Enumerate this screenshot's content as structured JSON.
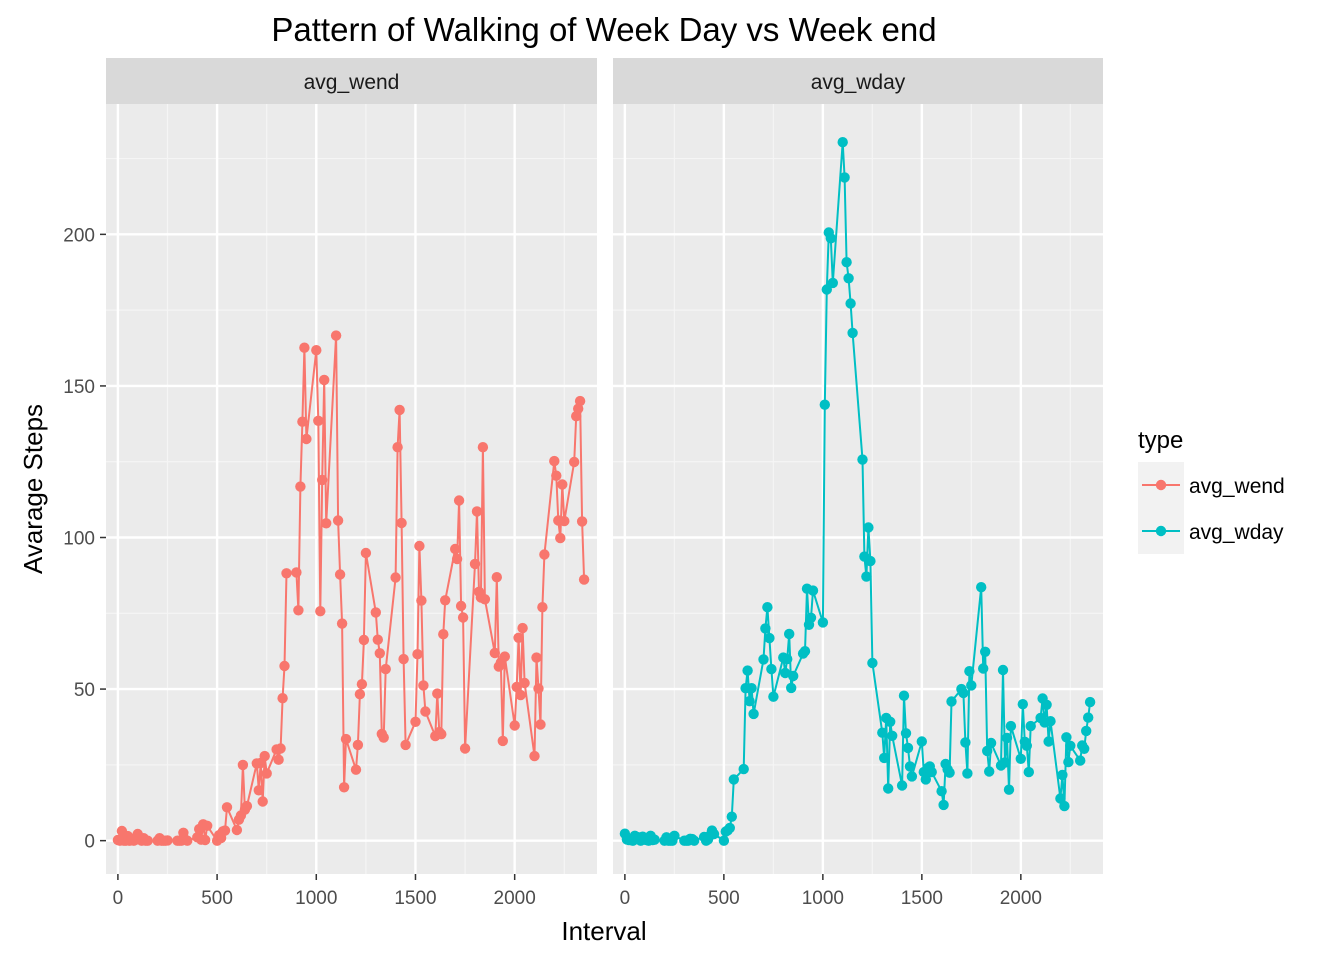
{
  "chart_data": {
    "type": "line",
    "title": "Pattern of Walking of Week Day vs Week end",
    "xlabel": "Interval",
    "ylabel": "Avarage Steps",
    "xlim": [
      -60,
      2415
    ],
    "ylim": [
      -11,
      243
    ],
    "x_ticks": [
      0,
      500,
      1000,
      1500,
      2000
    ],
    "y_ticks": [
      0,
      50,
      100,
      150,
      200
    ],
    "grid": true,
    "legend": {
      "title": "type",
      "placement": "right",
      "entries": [
        "avg_wend",
        "avg_wday"
      ]
    },
    "colors": {
      "avg_wend": "#F8766D",
      "avg_wday": "#00BFC4"
    },
    "facets": [
      {
        "label": "avg_wend",
        "series": "avg_wend",
        "points": [
          [
            0,
            0.2
          ],
          [
            10,
            0
          ],
          [
            20,
            3.2
          ],
          [
            30,
            0
          ],
          [
            40,
            0
          ],
          [
            50,
            1.5
          ],
          [
            60,
            0
          ],
          [
            70,
            0.6
          ],
          [
            80,
            0
          ],
          [
            90,
            0.3
          ],
          [
            100,
            2.2
          ],
          [
            110,
            0.6
          ],
          [
            120,
            0
          ],
          [
            130,
            0.8
          ],
          [
            140,
            0
          ],
          [
            150,
            0
          ],
          [
            200,
            0
          ],
          [
            210,
            0.8
          ],
          [
            220,
            0
          ],
          [
            230,
            0
          ],
          [
            240,
            0
          ],
          [
            250,
            0.1
          ],
          [
            300,
            0
          ],
          [
            310,
            0
          ],
          [
            320,
            0
          ],
          [
            330,
            2.6
          ],
          [
            340,
            0.3
          ],
          [
            350,
            0
          ],
          [
            400,
            1.1
          ],
          [
            410,
            3.8
          ],
          [
            420,
            0.3
          ],
          [
            430,
            5.4
          ],
          [
            440,
            0.2
          ],
          [
            450,
            4.9
          ],
          [
            500,
            0
          ],
          [
            510,
            1.8
          ],
          [
            520,
            0.9
          ],
          [
            530,
            3.1
          ],
          [
            540,
            3.3
          ],
          [
            550,
            11
          ],
          [
            600,
            3.5
          ],
          [
            610,
            6.9
          ],
          [
            620,
            8.3
          ],
          [
            630,
            25
          ],
          [
            640,
            10.2
          ],
          [
            650,
            11.4
          ],
          [
            700,
            25.5
          ],
          [
            710,
            16.6
          ],
          [
            720,
            25.6
          ],
          [
            730,
            12.9
          ],
          [
            740,
            27.9
          ],
          [
            750,
            22.2
          ],
          [
            800,
            30.1
          ],
          [
            810,
            26.7
          ],
          [
            820,
            30.4
          ],
          [
            830,
            47
          ],
          [
            840,
            57.6
          ],
          [
            850,
            88.2
          ],
          [
            900,
            88.5
          ],
          [
            910,
            76
          ],
          [
            920,
            116.8
          ],
          [
            930,
            138.2
          ],
          [
            940,
            162.6
          ],
          [
            950,
            132.5
          ],
          [
            1000,
            161.8
          ],
          [
            1010,
            138.5
          ],
          [
            1020,
            75.7
          ],
          [
            1030,
            119
          ],
          [
            1040,
            152
          ],
          [
            1050,
            104.7
          ],
          [
            1100,
            166.6
          ],
          [
            1110,
            105.6
          ],
          [
            1120,
            87.8
          ],
          [
            1130,
            71.6
          ],
          [
            1140,
            17.6
          ],
          [
            1150,
            33.5
          ],
          [
            1200,
            23.4
          ],
          [
            1210,
            31.6
          ],
          [
            1220,
            48.3
          ],
          [
            1230,
            51.6
          ],
          [
            1240,
            66.2
          ],
          [
            1250,
            94.9
          ],
          [
            1300,
            75.3
          ],
          [
            1310,
            66.3
          ],
          [
            1320,
            61.8
          ],
          [
            1330,
            35.2
          ],
          [
            1340,
            34
          ],
          [
            1350,
            56.6
          ],
          [
            1400,
            86.8
          ],
          [
            1410,
            129.8
          ],
          [
            1420,
            142.1
          ],
          [
            1430,
            104.8
          ],
          [
            1440,
            59.9
          ],
          [
            1450,
            31.6
          ],
          [
            1500,
            39.2
          ],
          [
            1510,
            61.5
          ],
          [
            1520,
            97.2
          ],
          [
            1530,
            79.2
          ],
          [
            1540,
            51.2
          ],
          [
            1550,
            42.6
          ],
          [
            1600,
            34.5
          ],
          [
            1610,
            48.5
          ],
          [
            1620,
            35.8
          ],
          [
            1630,
            35.1
          ],
          [
            1640,
            68.1
          ],
          [
            1650,
            79.3
          ],
          [
            1700,
            96.2
          ],
          [
            1710,
            92.9
          ],
          [
            1720,
            112.2
          ],
          [
            1730,
            77.4
          ],
          [
            1740,
            73.6
          ],
          [
            1750,
            30.4
          ],
          [
            1800,
            91.3
          ],
          [
            1810,
            108.6
          ],
          [
            1820,
            82.1
          ],
          [
            1830,
            80.2
          ],
          [
            1840,
            129.8
          ],
          [
            1850,
            79.6
          ],
          [
            1900,
            61.9
          ],
          [
            1910,
            86.9
          ],
          [
            1920,
            57.4
          ],
          [
            1930,
            58.7
          ],
          [
            1940,
            32.9
          ],
          [
            1950,
            60.7
          ],
          [
            2000,
            38
          ],
          [
            2010,
            50.7
          ],
          [
            2020,
            66.9
          ],
          [
            2030,
            48
          ],
          [
            2040,
            70.1
          ],
          [
            2050,
            52
          ],
          [
            2100,
            27.9
          ],
          [
            2110,
            60.4
          ],
          [
            2120,
            50.2
          ],
          [
            2130,
            38.3
          ],
          [
            2140,
            77
          ],
          [
            2150,
            94.4
          ],
          [
            2200,
            125.2
          ],
          [
            2210,
            120.4
          ],
          [
            2220,
            105.6
          ],
          [
            2230,
            99.8
          ],
          [
            2240,
            117.5
          ],
          [
            2250,
            105.4
          ],
          [
            2300,
            124.9
          ],
          [
            2310,
            140
          ],
          [
            2320,
            142.5
          ],
          [
            2330,
            145
          ],
          [
            2340,
            105.3
          ],
          [
            2350,
            86.1
          ]
        ]
      },
      {
        "label": "avg_wday",
        "series": "avg_wday",
        "points": [
          [
            0,
            2.3
          ],
          [
            10,
            0.4
          ],
          [
            20,
            0.2
          ],
          [
            30,
            0.2
          ],
          [
            40,
            0
          ],
          [
            50,
            1.6
          ],
          [
            60,
            0.5
          ],
          [
            70,
            1.1
          ],
          [
            80,
            0
          ],
          [
            90,
            1.3
          ],
          [
            100,
            0.3
          ],
          [
            110,
            0.2
          ],
          [
            120,
            0
          ],
          [
            130,
            1.6
          ],
          [
            140,
            0.2
          ],
          [
            150,
            0.3
          ],
          [
            200,
            0
          ],
          [
            210,
            1.1
          ],
          [
            220,
            0
          ],
          [
            230,
            0
          ],
          [
            240,
            0
          ],
          [
            250,
            1.6
          ],
          [
            300,
            0
          ],
          [
            310,
            0
          ],
          [
            320,
            0
          ],
          [
            330,
            0.6
          ],
          [
            340,
            0.5
          ],
          [
            350,
            0
          ],
          [
            400,
            1.2
          ],
          [
            410,
            0
          ],
          [
            420,
            0.4
          ],
          [
            430,
            1.7
          ],
          [
            440,
            3.3
          ],
          [
            450,
            2.2
          ],
          [
            500,
            0
          ],
          [
            510,
            3
          ],
          [
            520,
            3.4
          ],
          [
            530,
            4.2
          ],
          [
            540,
            7.9
          ],
          [
            550,
            20.2
          ],
          [
            600,
            23.6
          ],
          [
            610,
            50.3
          ],
          [
            620,
            56.1
          ],
          [
            630,
            46
          ],
          [
            640,
            50.3
          ],
          [
            650,
            41.8
          ],
          [
            700,
            59.8
          ],
          [
            710,
            70
          ],
          [
            720,
            77
          ],
          [
            730,
            66.8
          ],
          [
            740,
            56.6
          ],
          [
            750,
            47.5
          ],
          [
            800,
            60.4
          ],
          [
            810,
            55.3
          ],
          [
            820,
            59.9
          ],
          [
            830,
            68.2
          ],
          [
            840,
            50.4
          ],
          [
            850,
            54.3
          ],
          [
            900,
            61.7
          ],
          [
            910,
            62.5
          ],
          [
            920,
            83.1
          ],
          [
            930,
            71.2
          ],
          [
            940,
            73.5
          ],
          [
            950,
            82.5
          ],
          [
            1000,
            72
          ],
          [
            1010,
            143.8
          ],
          [
            1020,
            181.8
          ],
          [
            1030,
            200.6
          ],
          [
            1040,
            198.7
          ],
          [
            1050,
            184
          ],
          [
            1100,
            230.4
          ],
          [
            1110,
            218.8
          ],
          [
            1120,
            190.8
          ],
          [
            1130,
            185.5
          ],
          [
            1140,
            177.2
          ],
          [
            1150,
            167.5
          ],
          [
            1200,
            125.7
          ],
          [
            1210,
            93.7
          ],
          [
            1220,
            87.1
          ],
          [
            1230,
            103.3
          ],
          [
            1240,
            92.2
          ],
          [
            1250,
            58.6
          ],
          [
            1300,
            35.6
          ],
          [
            1310,
            27.3
          ],
          [
            1320,
            40.5
          ],
          [
            1330,
            17.2
          ],
          [
            1340,
            39.2
          ],
          [
            1350,
            34.6
          ],
          [
            1400,
            18.2
          ],
          [
            1410,
            47.8
          ],
          [
            1420,
            35.4
          ],
          [
            1430,
            30.6
          ],
          [
            1440,
            24.5
          ],
          [
            1450,
            21.2
          ],
          [
            1500,
            32.7
          ],
          [
            1510,
            22.6
          ],
          [
            1520,
            20.2
          ],
          [
            1530,
            24
          ],
          [
            1540,
            24.5
          ],
          [
            1550,
            22.6
          ],
          [
            1600,
            16.3
          ],
          [
            1610,
            11.8
          ],
          [
            1620,
            25.3
          ],
          [
            1630,
            23.5
          ],
          [
            1640,
            22.4
          ],
          [
            1650,
            45.9
          ],
          [
            1700,
            50
          ],
          [
            1710,
            48.7
          ],
          [
            1720,
            32.4
          ],
          [
            1730,
            22.2
          ],
          [
            1740,
            55.9
          ],
          [
            1750,
            51.2
          ],
          [
            1800,
            83.6
          ],
          [
            1810,
            56.8
          ],
          [
            1820,
            62.3
          ],
          [
            1830,
            29.6
          ],
          [
            1840,
            22.8
          ],
          [
            1850,
            32.2
          ],
          [
            1900,
            24.8
          ],
          [
            1910,
            56.3
          ],
          [
            1920,
            25.8
          ],
          [
            1930,
            33.9
          ],
          [
            1940,
            16.8
          ],
          [
            1950,
            37.8
          ],
          [
            2000,
            27
          ],
          [
            2010,
            45
          ],
          [
            2020,
            32.6
          ],
          [
            2030,
            31.3
          ],
          [
            2040,
            22.6
          ],
          [
            2050,
            37.8
          ],
          [
            2100,
            40.5
          ],
          [
            2110,
            46.9
          ],
          [
            2120,
            39
          ],
          [
            2130,
            44.8
          ],
          [
            2140,
            32.7
          ],
          [
            2150,
            39.4
          ],
          [
            2200,
            13.9
          ],
          [
            2210,
            21.7
          ],
          [
            2220,
            11.4
          ],
          [
            2230,
            34.1
          ],
          [
            2240,
            25.9
          ],
          [
            2250,
            31.3
          ],
          [
            2300,
            26.4
          ],
          [
            2310,
            31.4
          ],
          [
            2320,
            30.3
          ],
          [
            2330,
            36.2
          ],
          [
            2340,
            40.6
          ],
          [
            2350,
            45.7
          ]
        ]
      }
    ]
  }
}
